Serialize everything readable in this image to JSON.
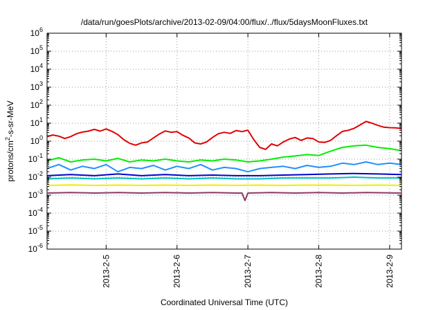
{
  "chart_data": {
    "type": "line",
    "title": "/data/run/goesPlots/archive/2013-02-09/04:00/flux/../flux/5daysMoonFluxes.txt",
    "xlabel": "Coordinated Universal Time (UTC)",
    "ylabel": {
      "base": "protons/cm",
      "sup": "2",
      "rest": "-s-sr-MeV"
    },
    "yscale": "log",
    "ylim_exp": [
      -6,
      6
    ],
    "yticks": [
      {
        "base": "10",
        "exp": "6",
        "value": 6
      },
      {
        "base": "10",
        "exp": "5",
        "value": 5
      },
      {
        "base": "10",
        "exp": "4",
        "value": 4
      },
      {
        "base": "10",
        "exp": "3",
        "value": 3
      },
      {
        "base": "10",
        "exp": "2",
        "value": 2
      },
      {
        "base": "10",
        "exp": "1",
        "value": 1
      },
      {
        "base": "10",
        "exp": "0",
        "value": 0
      },
      {
        "base": "10",
        "exp": "-1",
        "value": -1
      },
      {
        "base": "10",
        "exp": "-2",
        "value": -2
      },
      {
        "base": "10",
        "exp": "-3",
        "value": -3
      },
      {
        "base": "10",
        "exp": "-4",
        "value": -4
      },
      {
        "base": "10",
        "exp": "-5",
        "value": -5
      },
      {
        "base": "10",
        "exp": "-6",
        "value": -6
      }
    ],
    "xlim": [
      "2013-02-04 04:00",
      "2013-02-09 04:00"
    ],
    "xticks": [
      {
        "label": "2013-2-5",
        "value": "2013-02-05 00:00"
      },
      {
        "label": "2013-2-6",
        "value": "2013-02-06 00:00"
      },
      {
        "label": "2013-2-7",
        "value": "2013-02-07 00:00"
      },
      {
        "label": "2013-2-8",
        "value": "2013-02-08 00:00"
      },
      {
        "label": "2013-2-9",
        "value": "2013-02-09 00:00"
      }
    ],
    "grid": true,
    "series": [
      {
        "color": "#e00000",
        "values": [
          [
            "2013-02-04 04:00",
            1.8
          ],
          [
            "2013-02-04 06:00",
            2.2
          ],
          [
            "2013-02-04 08:00",
            1.9
          ],
          [
            "2013-02-04 10:00",
            1.4
          ],
          [
            "2013-02-04 12:00",
            1.8
          ],
          [
            "2013-02-04 14:00",
            2.6
          ],
          [
            "2013-02-04 16:00",
            3.2
          ],
          [
            "2013-02-04 18:00",
            3.6
          ],
          [
            "2013-02-04 20:00",
            4.5
          ],
          [
            "2013-02-04 22:00",
            3.6
          ],
          [
            "2013-02-05 00:00",
            4.8
          ],
          [
            "2013-02-05 02:00",
            3.5
          ],
          [
            "2013-02-05 04:00",
            2.3
          ],
          [
            "2013-02-05 06:00",
            1.2
          ],
          [
            "2013-02-05 08:00",
            0.75
          ],
          [
            "2013-02-05 10:00",
            0.6
          ],
          [
            "2013-02-05 12:00",
            0.8
          ],
          [
            "2013-02-05 14:00",
            0.9
          ],
          [
            "2013-02-05 16:00",
            1.5
          ],
          [
            "2013-02-05 18:00",
            2.5
          ],
          [
            "2013-02-05 20:00",
            3.7
          ],
          [
            "2013-02-05 22:00",
            3.1
          ],
          [
            "2013-02-06 00:00",
            3.4
          ],
          [
            "2013-02-06 02:00",
            2.1
          ],
          [
            "2013-02-06 04:00",
            1.5
          ],
          [
            "2013-02-06 06:00",
            0.8
          ],
          [
            "2013-02-06 08:00",
            0.7
          ],
          [
            "2013-02-06 10:00",
            0.9
          ],
          [
            "2013-02-06 12:00",
            1.6
          ],
          [
            "2013-02-06 14:00",
            2.6
          ],
          [
            "2013-02-06 16:00",
            3.1
          ],
          [
            "2013-02-06 18:00",
            2.7
          ],
          [
            "2013-02-06 20:00",
            3.9
          ],
          [
            "2013-02-06 22:00",
            3.4
          ],
          [
            "2013-02-07 00:00",
            4.1
          ],
          [
            "2013-02-07 02:00",
            1.2
          ],
          [
            "2013-02-07 04:00",
            0.45
          ],
          [
            "2013-02-07 06:00",
            0.35
          ],
          [
            "2013-02-07 08:00",
            0.7
          ],
          [
            "2013-02-07 10:00",
            0.55
          ],
          [
            "2013-02-07 12:00",
            0.9
          ],
          [
            "2013-02-07 14:00",
            1.3
          ],
          [
            "2013-02-07 16:00",
            1.6
          ],
          [
            "2013-02-07 18:00",
            1.1
          ],
          [
            "2013-02-07 20:00",
            1.5
          ],
          [
            "2013-02-07 22:00",
            1.4
          ],
          [
            "2013-02-08 00:00",
            0.9
          ],
          [
            "2013-02-08 02:00",
            0.85
          ],
          [
            "2013-02-08 04:00",
            1.1
          ],
          [
            "2013-02-08 06:00",
            2.0
          ],
          [
            "2013-02-08 08:00",
            3.5
          ],
          [
            "2013-02-08 10:00",
            4.0
          ],
          [
            "2013-02-08 12:00",
            5.2
          ],
          [
            "2013-02-08 14:00",
            8.0
          ],
          [
            "2013-02-08 16:00",
            12.5
          ],
          [
            "2013-02-08 18:00",
            10.0
          ],
          [
            "2013-02-08 20:00",
            7.5
          ],
          [
            "2013-02-08 22:00",
            6.0
          ],
          [
            "2013-02-09 00:00",
            5.6
          ],
          [
            "2013-02-09 02:00",
            5.5
          ],
          [
            "2013-02-09 04:00",
            5.0
          ]
        ]
      },
      {
        "color": "#00ee00",
        "values": [
          [
            "2013-02-04 04:00",
            0.08
          ],
          [
            "2013-02-04 08:00",
            0.12
          ],
          [
            "2013-02-04 12:00",
            0.07
          ],
          [
            "2013-02-04 16:00",
            0.09
          ],
          [
            "2013-02-04 20:00",
            0.1
          ],
          [
            "2013-02-05 00:00",
            0.08
          ],
          [
            "2013-02-05 04:00",
            0.11
          ],
          [
            "2013-02-05 08:00",
            0.07
          ],
          [
            "2013-02-05 12:00",
            0.09
          ],
          [
            "2013-02-05 16:00",
            0.08
          ],
          [
            "2013-02-05 20:00",
            0.1
          ],
          [
            "2013-02-06 00:00",
            0.08
          ],
          [
            "2013-02-06 04:00",
            0.07
          ],
          [
            "2013-02-06 08:00",
            0.09
          ],
          [
            "2013-02-06 12:00",
            0.08
          ],
          [
            "2013-02-06 16:00",
            0.1
          ],
          [
            "2013-02-06 20:00",
            0.09
          ],
          [
            "2013-02-07 00:00",
            0.07
          ],
          [
            "2013-02-07 04:00",
            0.08
          ],
          [
            "2013-02-07 08:00",
            0.1
          ],
          [
            "2013-02-07 12:00",
            0.13
          ],
          [
            "2013-02-07 16:00",
            0.15
          ],
          [
            "2013-02-07 20:00",
            0.18
          ],
          [
            "2013-02-08 00:00",
            0.16
          ],
          [
            "2013-02-08 04:00",
            0.28
          ],
          [
            "2013-02-08 08:00",
            0.45
          ],
          [
            "2013-02-08 12:00",
            0.55
          ],
          [
            "2013-02-08 16:00",
            0.6
          ],
          [
            "2013-02-08 20:00",
            0.45
          ],
          [
            "2013-02-09 00:00",
            0.38
          ],
          [
            "2013-02-09 04:00",
            0.3
          ]
        ]
      },
      {
        "color": "#1e90ff",
        "values": [
          [
            "2013-02-04 04:00",
            0.03
          ],
          [
            "2013-02-04 08:00",
            0.05
          ],
          [
            "2013-02-04 12:00",
            0.025
          ],
          [
            "2013-02-04 16:00",
            0.04
          ],
          [
            "2013-02-04 20:00",
            0.03
          ],
          [
            "2013-02-05 00:00",
            0.05
          ],
          [
            "2013-02-05 04:00",
            0.02
          ],
          [
            "2013-02-05 08:00",
            0.035
          ],
          [
            "2013-02-05 12:00",
            0.03
          ],
          [
            "2013-02-05 16:00",
            0.045
          ],
          [
            "2013-02-05 20:00",
            0.025
          ],
          [
            "2013-02-06 00:00",
            0.04
          ],
          [
            "2013-02-06 04:00",
            0.03
          ],
          [
            "2013-02-06 08:00",
            0.05
          ],
          [
            "2013-02-06 12:00",
            0.025
          ],
          [
            "2013-02-06 16:00",
            0.035
          ],
          [
            "2013-02-06 20:00",
            0.03
          ],
          [
            "2013-02-07 00:00",
            0.02
          ],
          [
            "2013-02-07 04:00",
            0.03
          ],
          [
            "2013-02-07 08:00",
            0.035
          ],
          [
            "2013-02-07 12:00",
            0.04
          ],
          [
            "2013-02-07 16:00",
            0.03
          ],
          [
            "2013-02-07 20:00",
            0.045
          ],
          [
            "2013-02-08 00:00",
            0.035
          ],
          [
            "2013-02-08 04:00",
            0.04
          ],
          [
            "2013-02-08 08:00",
            0.06
          ],
          [
            "2013-02-08 12:00",
            0.05
          ],
          [
            "2013-02-08 16:00",
            0.07
          ],
          [
            "2013-02-08 20:00",
            0.05
          ],
          [
            "2013-02-09 00:00",
            0.06
          ],
          [
            "2013-02-09 04:00",
            0.05
          ]
        ]
      },
      {
        "color": "#0000cc",
        "values": [
          [
            "2013-02-04 04:00",
            0.012
          ],
          [
            "2013-02-04 12:00",
            0.014
          ],
          [
            "2013-02-04 20:00",
            0.012
          ],
          [
            "2013-02-05 04:00",
            0.015
          ],
          [
            "2013-02-05 12:00",
            0.012
          ],
          [
            "2013-02-05 20:00",
            0.014
          ],
          [
            "2013-02-06 04:00",
            0.012
          ],
          [
            "2013-02-06 12:00",
            0.013
          ],
          [
            "2013-02-06 20:00",
            0.012
          ],
          [
            "2013-02-07 04:00",
            0.012
          ],
          [
            "2013-02-07 12:00",
            0.013
          ],
          [
            "2013-02-07 20:00",
            0.014
          ],
          [
            "2013-02-08 04:00",
            0.015
          ],
          [
            "2013-02-08 12:00",
            0.016
          ],
          [
            "2013-02-08 20:00",
            0.015
          ],
          [
            "2013-02-09 04:00",
            0.014
          ]
        ]
      },
      {
        "color": "#00bfbf",
        "values": [
          [
            "2013-02-04 04:00",
            0.008
          ],
          [
            "2013-02-04 12:00",
            0.009
          ],
          [
            "2013-02-04 20:00",
            0.008
          ],
          [
            "2013-02-05 04:00",
            0.009
          ],
          [
            "2013-02-05 12:00",
            0.008
          ],
          [
            "2013-02-05 20:00",
            0.009
          ],
          [
            "2013-02-06 04:00",
            0.008
          ],
          [
            "2013-02-06 12:00",
            0.009
          ],
          [
            "2013-02-06 20:00",
            0.008
          ],
          [
            "2013-02-07 04:00",
            0.008
          ],
          [
            "2013-02-07 12:00",
            0.009
          ],
          [
            "2013-02-07 20:00",
            0.009
          ],
          [
            "2013-02-08 04:00",
            0.009
          ],
          [
            "2013-02-08 12:00",
            0.01
          ],
          [
            "2013-02-08 20:00",
            0.009
          ],
          [
            "2013-02-09 04:00",
            0.009
          ]
        ]
      },
      {
        "color": "#eeee00",
        "values": [
          [
            "2013-02-04 04:00",
            0.0035
          ],
          [
            "2013-02-04 12:00",
            0.0037
          ],
          [
            "2013-02-04 20:00",
            0.0035
          ],
          [
            "2013-02-05 04:00",
            0.0036
          ],
          [
            "2013-02-05 12:00",
            0.0035
          ],
          [
            "2013-02-05 20:00",
            0.0036
          ],
          [
            "2013-02-06 04:00",
            0.0035
          ],
          [
            "2013-02-06 12:00",
            0.0036
          ],
          [
            "2013-02-06 20:00",
            0.0035
          ],
          [
            "2013-02-07 04:00",
            0.0036
          ],
          [
            "2013-02-07 12:00",
            0.0035
          ],
          [
            "2013-02-07 20:00",
            0.0036
          ],
          [
            "2013-02-08 04:00",
            0.0036
          ],
          [
            "2013-02-08 12:00",
            0.0035
          ],
          [
            "2013-02-08 20:00",
            0.0036
          ],
          [
            "2013-02-09 04:00",
            0.0035
          ]
        ]
      },
      {
        "color": "#8b3a62",
        "values": [
          [
            "2013-02-04 04:00",
            0.0013
          ],
          [
            "2013-02-04 12:00",
            0.0014
          ],
          [
            "2013-02-04 20:00",
            0.0013
          ],
          [
            "2013-02-05 04:00",
            0.0014
          ],
          [
            "2013-02-05 12:00",
            0.0013
          ],
          [
            "2013-02-05 20:00",
            0.0014
          ],
          [
            "2013-02-06 04:00",
            0.0013
          ],
          [
            "2013-02-06 12:00",
            0.0014
          ],
          [
            "2013-02-06 20:00",
            0.0013
          ],
          [
            "2013-02-06 22:00",
            0.0013
          ],
          [
            "2013-02-06 23:00",
            0.0005
          ],
          [
            "2013-02-07 00:00",
            0.0013
          ],
          [
            "2013-02-07 08:00",
            0.0014
          ],
          [
            "2013-02-07 16:00",
            0.0013
          ],
          [
            "2013-02-08 00:00",
            0.0014
          ],
          [
            "2013-02-08 08:00",
            0.0013
          ],
          [
            "2013-02-08 16:00",
            0.0014
          ],
          [
            "2013-02-09 04:00",
            0.0013
          ]
        ]
      }
    ]
  }
}
